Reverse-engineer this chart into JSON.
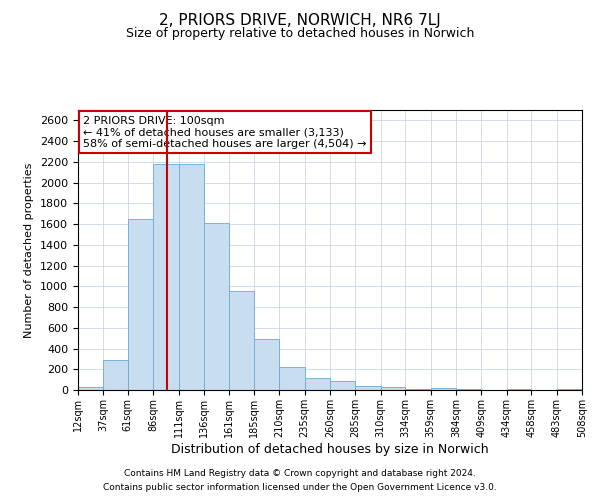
{
  "title": "2, PRIORS DRIVE, NORWICH, NR6 7LJ",
  "subtitle": "Size of property relative to detached houses in Norwich",
  "xlabel": "Distribution of detached houses by size in Norwich",
  "ylabel": "Number of detached properties",
  "footnote1": "Contains HM Land Registry data © Crown copyright and database right 2024.",
  "footnote2": "Contains public sector information licensed under the Open Government Licence v3.0.",
  "bar_color": "#c9ddf0",
  "bar_edge_color": "#6aaad4",
  "annotation_line1": "2 PRIORS DRIVE: 100sqm",
  "annotation_line2": "← 41% of detached houses are smaller (3,133)",
  "annotation_line3": "58% of semi-detached houses are larger (4,504) →",
  "vline_x": 100,
  "vline_color": "#cc0000",
  "bin_edges": [
    12,
    37,
    61,
    86,
    111,
    136,
    161,
    185,
    210,
    235,
    260,
    285,
    310,
    334,
    359,
    384,
    409,
    434,
    458,
    483,
    508
  ],
  "bar_heights": [
    25,
    285,
    1650,
    2175,
    2175,
    1610,
    950,
    495,
    225,
    115,
    88,
    38,
    32,
    5,
    22,
    12,
    3,
    8,
    2,
    12
  ],
  "ylim": [
    0,
    2700
  ],
  "yticks": [
    0,
    200,
    400,
    600,
    800,
    1000,
    1200,
    1400,
    1600,
    1800,
    2000,
    2200,
    2400,
    2600
  ],
  "background_color": "#ffffff",
  "grid_color": "#c0cfe0",
  "title_fontsize": 11,
  "subtitle_fontsize": 9,
  "ylabel_fontsize": 8,
  "xlabel_fontsize": 9,
  "ytick_fontsize": 8,
  "xtick_fontsize": 7,
  "footnote_fontsize": 6.5,
  "annotation_fontsize": 8
}
